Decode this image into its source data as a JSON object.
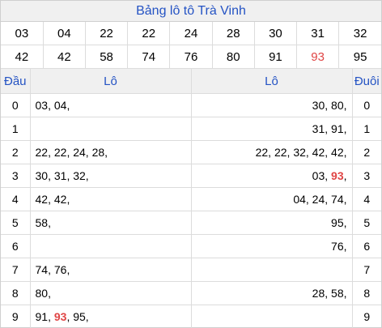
{
  "title": "Bảng lô tô Trà Vinh",
  "numbers_row1": [
    "03",
    "04",
    "22",
    "22",
    "24",
    "28",
    "30",
    "31",
    "32"
  ],
  "numbers_row2": [
    "42",
    "42",
    "58",
    "74",
    "76",
    "80",
    "91",
    "93",
    "95"
  ],
  "highlight_number": "93",
  "headers": {
    "dau": "Đầu",
    "lo_left": "Lô",
    "lo_right": "Lô",
    "duoi": "Đuôi"
  },
  "rows": [
    {
      "idx": "0",
      "left": [
        "03",
        "04"
      ],
      "right": [
        "30",
        "80"
      ]
    },
    {
      "idx": "1",
      "left": [],
      "right": [
        "31",
        "91"
      ]
    },
    {
      "idx": "2",
      "left": [
        "22",
        "22",
        "24",
        "28"
      ],
      "right": [
        "22",
        "22",
        "32",
        "42",
        "42"
      ]
    },
    {
      "idx": "3",
      "left": [
        "30",
        "31",
        "32"
      ],
      "right": [
        "03",
        "93"
      ]
    },
    {
      "idx": "4",
      "left": [
        "42",
        "42"
      ],
      "right": [
        "04",
        "24",
        "74"
      ]
    },
    {
      "idx": "5",
      "left": [
        "58"
      ],
      "right": [
        "95"
      ]
    },
    {
      "idx": "6",
      "left": [],
      "right": [
        "76"
      ]
    },
    {
      "idx": "7",
      "left": [
        "74",
        "76"
      ],
      "right": []
    },
    {
      "idx": "8",
      "left": [
        "80"
      ],
      "right": [
        "28",
        "58"
      ]
    },
    {
      "idx": "9",
      "left": [
        "91",
        "93",
        "95"
      ],
      "right": []
    }
  ],
  "colors": {
    "accent": "#2453c4",
    "highlight": "#e04545",
    "header_bg": "#f0f0f0"
  }
}
